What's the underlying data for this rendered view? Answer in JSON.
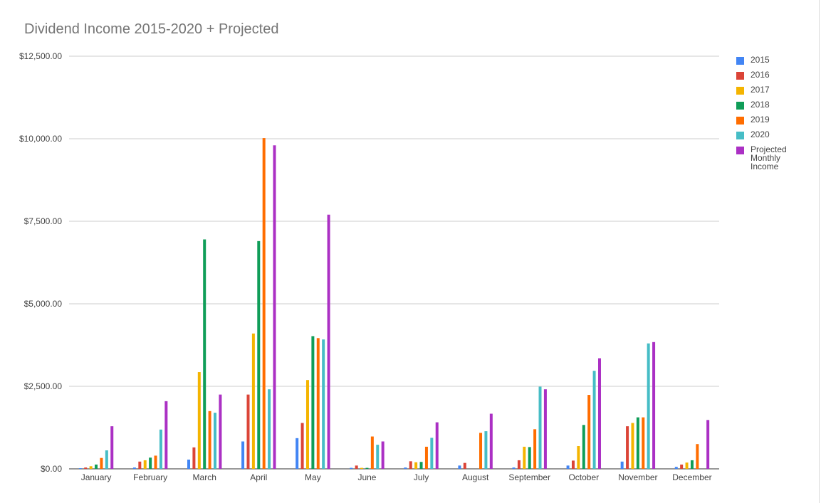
{
  "chart_data": {
    "type": "bar",
    "title": "Dividend Income 2015-2020 + Projected",
    "xlabel": "",
    "ylabel": "",
    "ylim": [
      0,
      12500
    ],
    "y_ticks": [
      {
        "value": 0,
        "label": "$0.00"
      },
      {
        "value": 2500,
        "label": "$2,500.00"
      },
      {
        "value": 5000,
        "label": "$5,000.00"
      },
      {
        "value": 7500,
        "label": "$7,500.00"
      },
      {
        "value": 10000,
        "label": "$10,000.00"
      },
      {
        "value": 12500,
        "label": "$12,500.00"
      }
    ],
    "grid": true,
    "legend_position": "right",
    "categories": [
      "January",
      "February",
      "March",
      "April",
      "May",
      "June",
      "July",
      "August",
      "September",
      "October",
      "November",
      "December"
    ],
    "series": [
      {
        "name": "2015",
        "color": "#4285f4",
        "values": [
          20,
          40,
          280,
          830,
          930,
          30,
          40,
          100,
          40,
          100,
          220,
          60
        ]
      },
      {
        "name": "2016",
        "color": "#db4437",
        "values": [
          40,
          220,
          650,
          2250,
          1390,
          100,
          230,
          180,
          260,
          250,
          1290,
          130
        ]
      },
      {
        "name": "2017",
        "color": "#f4b400",
        "values": [
          80,
          260,
          2930,
          4100,
          2690,
          30,
          200,
          0,
          670,
          690,
          1390,
          190
        ]
      },
      {
        "name": "2018",
        "color": "#0f9d58",
        "values": [
          130,
          340,
          6950,
          6900,
          4020,
          30,
          210,
          0,
          660,
          1330,
          1560,
          260
        ]
      },
      {
        "name": "2019",
        "color": "#ff6d00",
        "values": [
          330,
          400,
          1750,
          10020,
          3960,
          980,
          670,
          1090,
          1200,
          2240,
          1560,
          750
        ]
      },
      {
        "name": "2020",
        "color": "#46bdc6",
        "values": [
          560,
          1190,
          1700,
          2410,
          3920,
          730,
          940,
          1140,
          2490,
          2970,
          3800,
          0
        ]
      },
      {
        "name": "Projected Monthly Income",
        "color": "#ab30c4",
        "values": [
          1290,
          2050,
          2250,
          9800,
          7700,
          830,
          1410,
          1670,
          2410,
          3350,
          3840,
          1480
        ]
      }
    ]
  }
}
